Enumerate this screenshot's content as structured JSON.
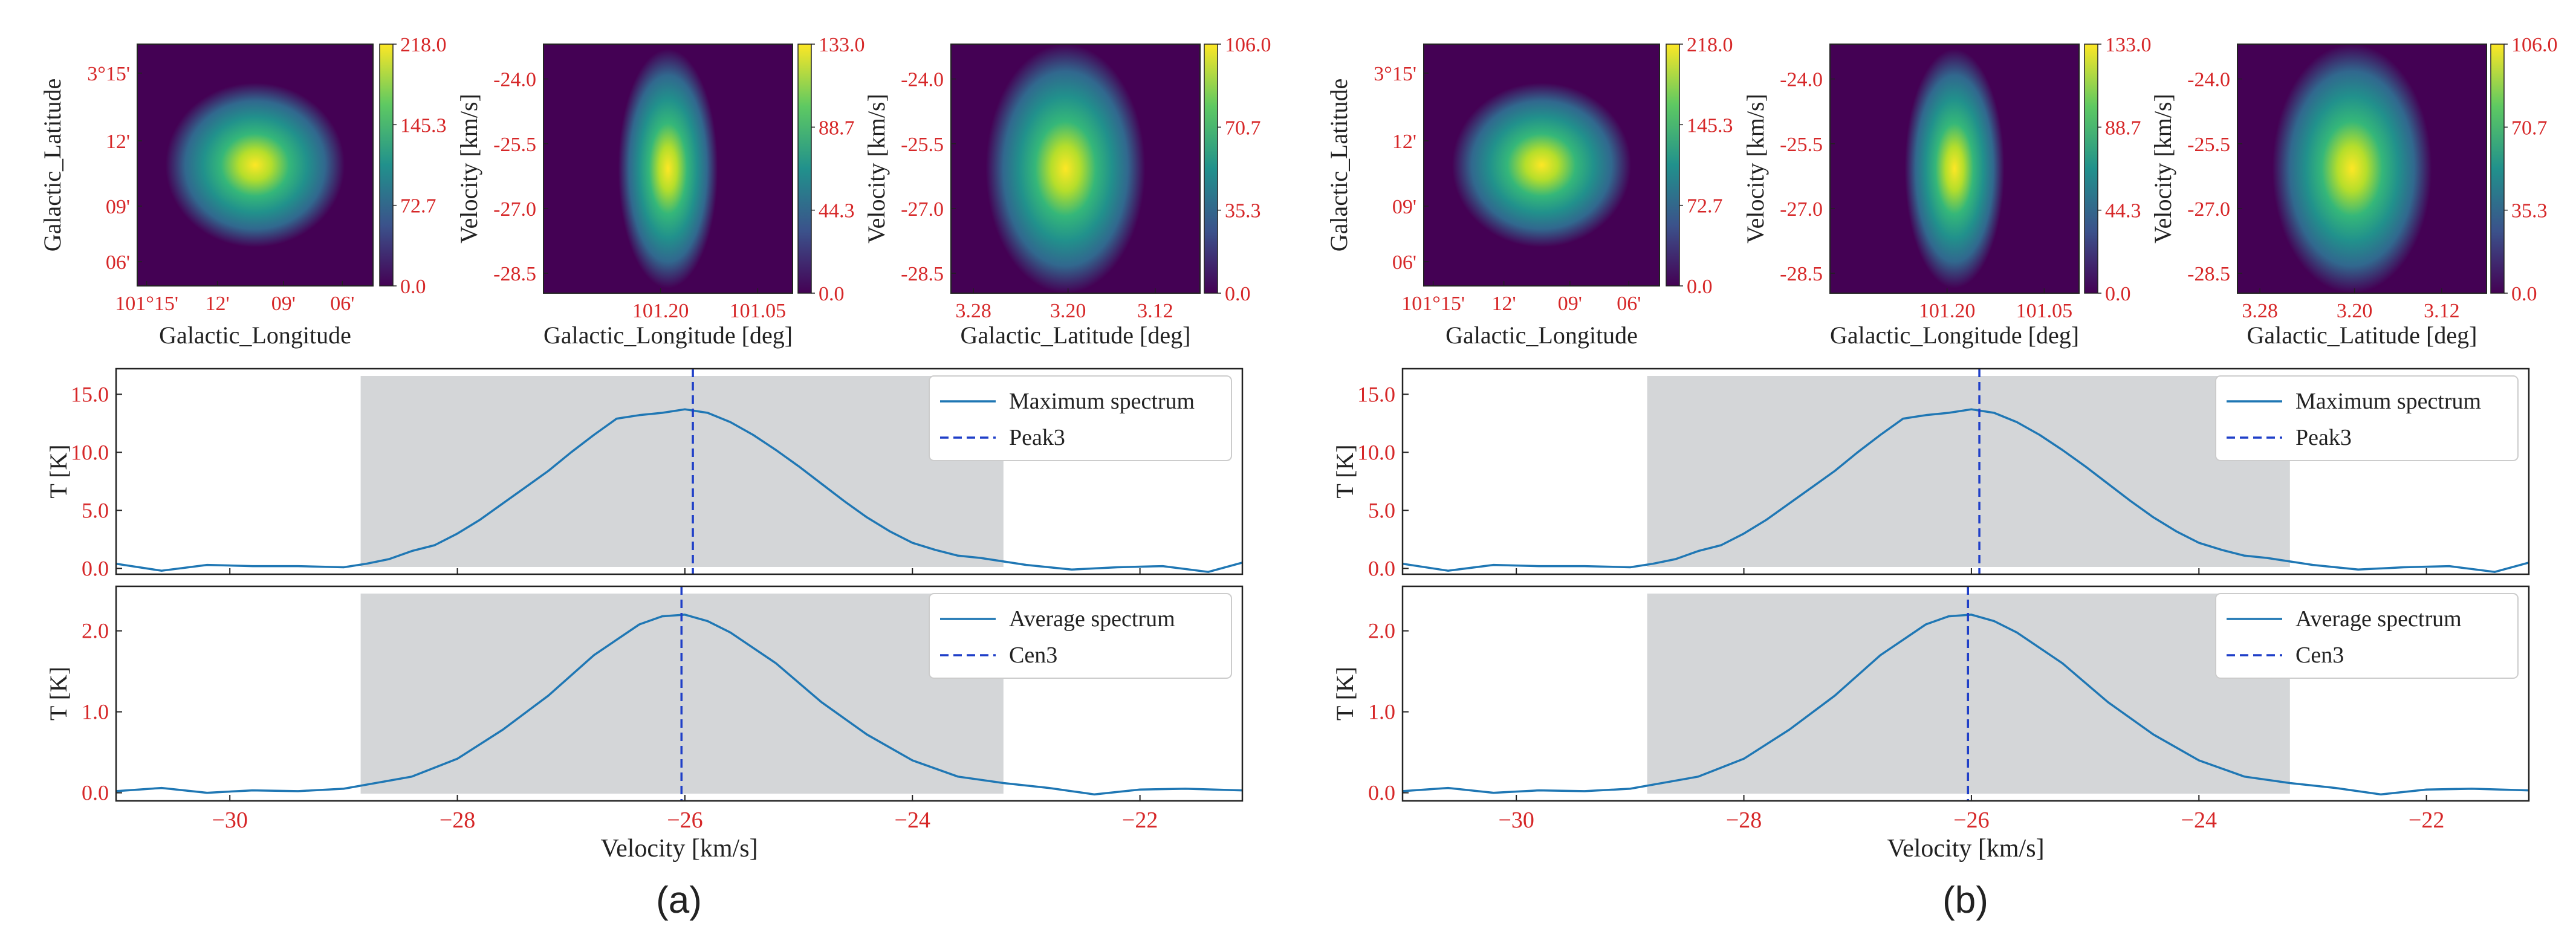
{
  "panels": [
    {
      "label": "(a)",
      "images": [
        {
          "xlabel": "Galactic_Longitude",
          "ylabel": "Galactic_Latitude",
          "xticks": [
            "101°15'",
            "12'",
            "09'",
            "06'"
          ],
          "yticks": [
            "3°15'",
            "12'",
            "09'",
            "06'"
          ],
          "colorbar": [
            "218.0",
            "145.3",
            "72.7",
            "0.0"
          ]
        },
        {
          "xlabel": "Galactic_Longitude [deg]",
          "ylabel": "Velocity [km/s]",
          "xticks": [
            "101.20",
            "101.05"
          ],
          "yticks": [
            "-24.0",
            "-25.5",
            "-27.0",
            "-28.5"
          ],
          "colorbar": [
            "133.0",
            "88.7",
            "44.3",
            "0.0"
          ]
        },
        {
          "xlabel": "Galactic_Latitude [deg]",
          "ylabel": "Velocity [km/s]",
          "xticks": [
            "3.28",
            "3.20",
            "3.12"
          ],
          "yticks": [
            "-24.0",
            "-25.5",
            "-27.0",
            "-28.5"
          ],
          "colorbar": [
            "106.0",
            "70.7",
            "35.3",
            "0.0"
          ]
        }
      ]
    },
    {
      "label": "(b)",
      "images": [
        {
          "xlabel": "Galactic_Longitude",
          "ylabel": "Galactic_Latitude",
          "xticks": [
            "101°15'",
            "12'",
            "09'",
            "06'"
          ],
          "yticks": [
            "3°15'",
            "12'",
            "09'",
            "06'"
          ],
          "colorbar": [
            "218.0",
            "145.3",
            "72.7",
            "0.0"
          ]
        },
        {
          "xlabel": "Galactic_Longitude [deg]",
          "ylabel": "Velocity [km/s]",
          "xticks": [
            "101.20",
            "101.05"
          ],
          "yticks": [
            "-24.0",
            "-25.5",
            "-27.0",
            "-28.5"
          ],
          "colorbar": [
            "133.0",
            "88.7",
            "44.3",
            "0.0"
          ]
        },
        {
          "xlabel": "Galactic_Latitude [deg]",
          "ylabel": "Velocity [km/s]",
          "xticks": [
            "3.28",
            "3.20",
            "3.12"
          ],
          "yticks": [
            "-24.0",
            "-25.5",
            "-27.0",
            "-28.5"
          ],
          "colorbar": [
            "106.0",
            "70.7",
            "35.3",
            "0.0"
          ]
        }
      ]
    }
  ],
  "colors": {
    "line": "#1f77b4",
    "dashed": "#1f3fc8",
    "shade": "#d4d6d8",
    "tick_label": "#d62728",
    "axis": "#222222"
  },
  "chart_data": [
    {
      "type": "line",
      "panel": "(a)",
      "title": "",
      "xlabel": "",
      "ylabel": "T [K]",
      "xlim": [
        -31,
        -21.1
      ],
      "ylim": [
        -0.5,
        17.2
      ],
      "yticks": [
        0.0,
        5.0,
        10.0,
        15.0
      ],
      "ytick_labels": [
        "0.0",
        "5.0",
        "10.0",
        "15.0"
      ],
      "xticks": [
        -30,
        -28,
        -26,
        -24,
        -22
      ],
      "shaded_range": [
        -28.85,
        -23.2
      ],
      "marker_line": {
        "name": "Peak3",
        "x": -25.93
      },
      "series": [
        {
          "name": "Maximum spectrum",
          "x": [
            -31.0,
            -30.6,
            -30.2,
            -29.8,
            -29.4,
            -29.0,
            -28.8,
            -28.6,
            -28.4,
            -28.2,
            -28.0,
            -27.8,
            -27.6,
            -27.4,
            -27.2,
            -27.0,
            -26.8,
            -26.6,
            -26.4,
            -26.2,
            -26.0,
            -25.8,
            -25.6,
            -25.4,
            -25.2,
            -25.0,
            -24.8,
            -24.6,
            -24.4,
            -24.2,
            -24.0,
            -23.8,
            -23.6,
            -23.4,
            -23.2,
            -23.0,
            -22.6,
            -22.2,
            -21.8,
            -21.4,
            -21.1
          ],
          "values": [
            0.4,
            -0.2,
            0.3,
            0.2,
            0.2,
            0.1,
            0.4,
            0.8,
            1.5,
            2.0,
            3.0,
            4.2,
            5.6,
            7.0,
            8.4,
            10.0,
            11.5,
            12.9,
            13.2,
            13.4,
            13.7,
            13.4,
            12.6,
            11.5,
            10.2,
            8.8,
            7.3,
            5.8,
            4.4,
            3.2,
            2.2,
            1.6,
            1.1,
            0.9,
            0.6,
            0.3,
            -0.1,
            0.1,
            0.2,
            -0.3,
            0.5
          ]
        }
      ]
    },
    {
      "type": "line",
      "panel": "(a)",
      "title": "",
      "xlabel": "Velocity [km/s]",
      "ylabel": "T [K]",
      "xlim": [
        -31,
        -21.1
      ],
      "ylim": [
        -0.1,
        2.55
      ],
      "yticks": [
        0.0,
        1.0,
        2.0
      ],
      "ytick_labels": [
        "0.0",
        "1.0",
        "2.0"
      ],
      "xticks": [
        -30,
        -28,
        -26,
        -24,
        -22
      ],
      "xtick_labels": [
        "−30",
        "−28",
        "−26",
        "−24",
        "−22"
      ],
      "shaded_range": [
        -28.85,
        -23.2
      ],
      "marker_line": {
        "name": "Cen3",
        "x": -26.03
      },
      "series": [
        {
          "name": "Average spectrum",
          "x": [
            -31.0,
            -30.6,
            -30.2,
            -29.8,
            -29.4,
            -29.0,
            -28.8,
            -28.4,
            -28.0,
            -27.6,
            -27.2,
            -26.8,
            -26.4,
            -26.2,
            -26.0,
            -25.8,
            -25.6,
            -25.2,
            -24.8,
            -24.4,
            -24.0,
            -23.6,
            -23.2,
            -22.8,
            -22.4,
            -22.0,
            -21.6,
            -21.1
          ],
          "values": [
            0.02,
            0.06,
            0.0,
            0.03,
            0.02,
            0.05,
            0.1,
            0.2,
            0.42,
            0.78,
            1.2,
            1.7,
            2.08,
            2.18,
            2.2,
            2.12,
            1.98,
            1.6,
            1.12,
            0.72,
            0.4,
            0.2,
            0.12,
            0.06,
            -0.02,
            0.04,
            0.05,
            0.03
          ]
        }
      ]
    },
    {
      "type": "line",
      "panel": "(b)",
      "title": "",
      "xlabel": "",
      "ylabel": "T [K]",
      "xlim": [
        -31,
        -21.1
      ],
      "ylim": [
        -0.5,
        17.2
      ],
      "yticks": [
        0.0,
        5.0,
        10.0,
        15.0
      ],
      "ytick_labels": [
        "0.0",
        "5.0",
        "10.0",
        "15.0"
      ],
      "xticks": [
        -30,
        -28,
        -26,
        -24,
        -22
      ],
      "shaded_range": [
        -28.85,
        -23.2
      ],
      "marker_line": {
        "name": "Peak3",
        "x": -25.93
      },
      "series": [
        {
          "name": "Maximum spectrum",
          "x": [
            -31.0,
            -30.6,
            -30.2,
            -29.8,
            -29.4,
            -29.0,
            -28.8,
            -28.6,
            -28.4,
            -28.2,
            -28.0,
            -27.8,
            -27.6,
            -27.4,
            -27.2,
            -27.0,
            -26.8,
            -26.6,
            -26.4,
            -26.2,
            -26.0,
            -25.8,
            -25.6,
            -25.4,
            -25.2,
            -25.0,
            -24.8,
            -24.6,
            -24.4,
            -24.2,
            -24.0,
            -23.8,
            -23.6,
            -23.4,
            -23.2,
            -23.0,
            -22.6,
            -22.2,
            -21.8,
            -21.4,
            -21.1
          ],
          "values": [
            0.4,
            -0.2,
            0.3,
            0.2,
            0.2,
            0.1,
            0.4,
            0.8,
            1.5,
            2.0,
            3.0,
            4.2,
            5.6,
            7.0,
            8.4,
            10.0,
            11.5,
            12.9,
            13.2,
            13.4,
            13.7,
            13.4,
            12.6,
            11.5,
            10.2,
            8.8,
            7.3,
            5.8,
            4.4,
            3.2,
            2.2,
            1.6,
            1.1,
            0.9,
            0.6,
            0.3,
            -0.1,
            0.1,
            0.2,
            -0.3,
            0.5
          ]
        }
      ]
    },
    {
      "type": "line",
      "panel": "(b)",
      "title": "",
      "xlabel": "Velocity [km/s]",
      "ylabel": "T [K]",
      "xlim": [
        -31,
        -21.1
      ],
      "ylim": [
        -0.1,
        2.55
      ],
      "yticks": [
        0.0,
        1.0,
        2.0
      ],
      "ytick_labels": [
        "0.0",
        "1.0",
        "2.0"
      ],
      "xticks": [
        -30,
        -28,
        -26,
        -24,
        -22
      ],
      "xtick_labels": [
        "−30",
        "−28",
        "−26",
        "−24",
        "−22"
      ],
      "shaded_range": [
        -28.85,
        -23.2
      ],
      "marker_line": {
        "name": "Cen3",
        "x": -26.03
      },
      "series": [
        {
          "name": "Average spectrum",
          "x": [
            -31.0,
            -30.6,
            -30.2,
            -29.8,
            -29.4,
            -29.0,
            -28.8,
            -28.4,
            -28.0,
            -27.6,
            -27.2,
            -26.8,
            -26.4,
            -26.2,
            -26.0,
            -25.8,
            -25.6,
            -25.2,
            -24.8,
            -24.4,
            -24.0,
            -23.6,
            -23.2,
            -22.8,
            -22.4,
            -22.0,
            -21.6,
            -21.1
          ],
          "values": [
            0.02,
            0.06,
            0.0,
            0.03,
            0.02,
            0.05,
            0.1,
            0.2,
            0.42,
            0.78,
            1.2,
            1.7,
            2.08,
            2.18,
            2.2,
            2.12,
            1.98,
            1.6,
            1.12,
            0.72,
            0.4,
            0.2,
            0.12,
            0.06,
            -0.02,
            0.04,
            0.05,
            0.03
          ]
        }
      ]
    }
  ]
}
